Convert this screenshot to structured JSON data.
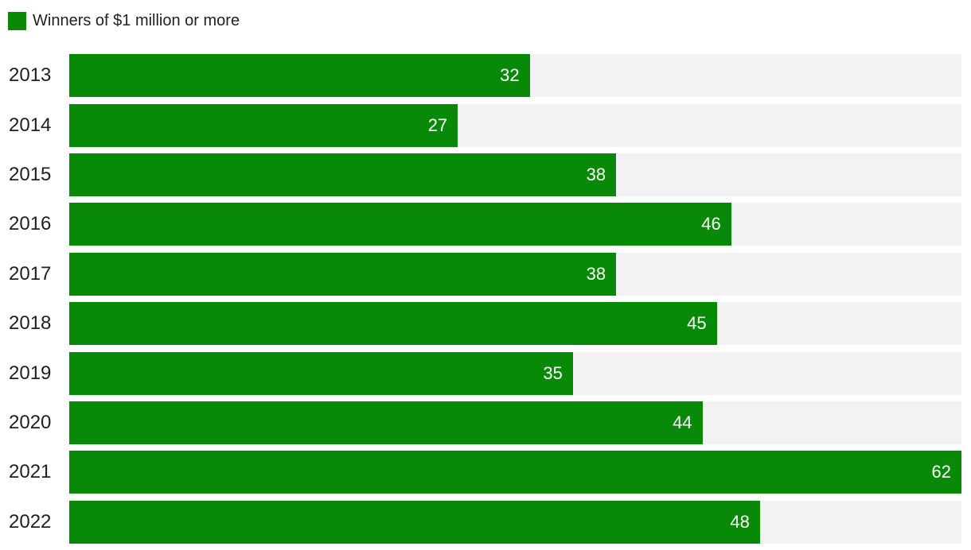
{
  "legend": {
    "label": "Winners of $1 million or more"
  },
  "colors": {
    "bar": "#088a08",
    "track": "#f2f2f2",
    "year_label": "#212121",
    "value_text": "#ffffff",
    "background": "#ffffff"
  },
  "chart_data": {
    "type": "bar",
    "orientation": "horizontal",
    "title": "",
    "legend_entries": [
      "Winners of $1 million or more"
    ],
    "legend_position": "top-left",
    "categories": [
      "2013",
      "2014",
      "2015",
      "2016",
      "2017",
      "2018",
      "2019",
      "2020",
      "2021",
      "2022"
    ],
    "values": [
      32,
      27,
      38,
      46,
      38,
      45,
      35,
      44,
      62,
      48
    ],
    "xlabel": "",
    "ylabel": "",
    "xlim": [
      0,
      62
    ],
    "grid": false,
    "value_labels": "inside-end-white",
    "track_background": true
  }
}
